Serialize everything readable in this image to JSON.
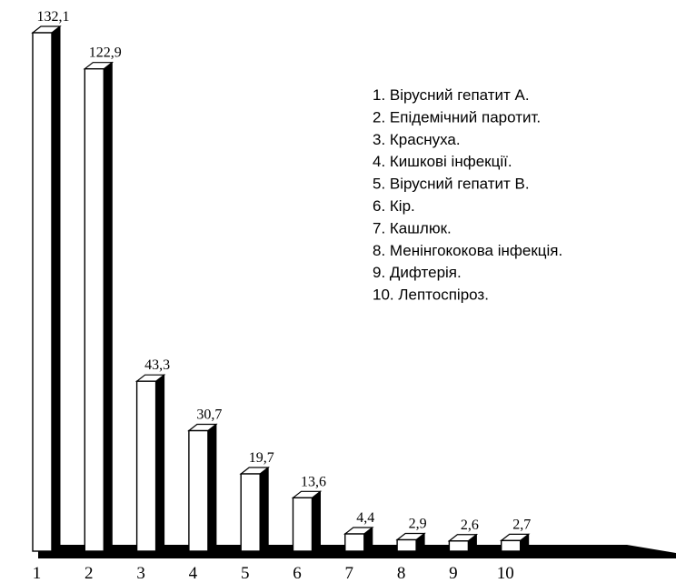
{
  "chart_data": {
    "type": "bar",
    "categories": [
      "1",
      "2",
      "3",
      "4",
      "5",
      "6",
      "7",
      "8",
      "9",
      "10"
    ],
    "values": [
      132.1,
      122.9,
      43.3,
      30.7,
      19.7,
      13.6,
      4.4,
      2.9,
      2.6,
      2.7
    ],
    "value_labels": [
      "132,1",
      "122,9",
      "43,3",
      "30,7",
      "19,7",
      "13,6",
      "4,4",
      "2,9",
      "2,6",
      "2,7"
    ],
    "legend": [
      "1. Вірусний гепатит А.",
      "2. Епідемічний паротит.",
      "3. Краснуха.",
      "4. Кишкові інфекції.",
      "5. Вірусний гепатит В.",
      "6. Кір.",
      "7. Кашлюк.",
      "8. Менінгококова інфекція.",
      "9. Дифтерія.",
      "10. Лептоспіроз."
    ],
    "title": "",
    "xlabel": "",
    "ylabel": "",
    "ylim": [
      0,
      132.1
    ],
    "legend_position": "top-right",
    "style": "3d-bars",
    "colors": {
      "bar_face": "#ffffff",
      "bar_side": "#000000",
      "outline": "#000000"
    }
  }
}
